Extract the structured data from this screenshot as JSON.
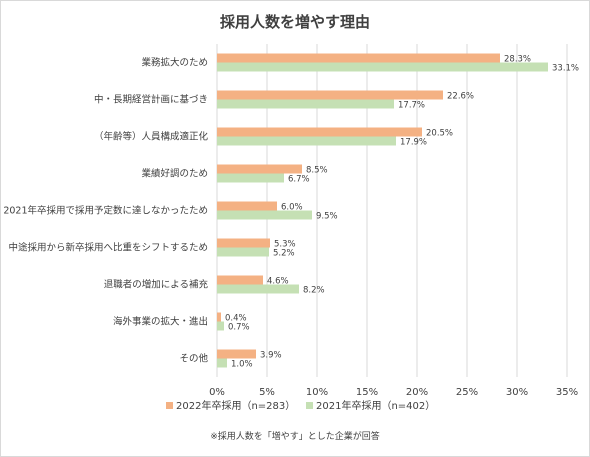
{
  "title": "採用人数を増やす理由",
  "note": "※採用人数を「増やす」とした企業が回答",
  "colors": {
    "series_2022": "#f4b183",
    "series_2021": "#c5e0b4",
    "grid": "#d9d9d9",
    "text": "#404040"
  },
  "chart_data": {
    "type": "bar",
    "orientation": "horizontal",
    "title": "採用人数を増やす理由",
    "categories": [
      "業務拡大のため",
      "中・長期経営計画に基づき",
      "（年齢等）人員構成適正化",
      "業績好調のため",
      "2021年卒採用で採用予定数に達しなかったため",
      "中途採用から新卒採用へ比重をシフトするため",
      "退職者の増加による補充",
      "海外事業の拡大・進出",
      "その他"
    ],
    "series": [
      {
        "name": "2022年卒採用（n=283）",
        "values": [
          28.3,
          22.6,
          20.5,
          8.5,
          6.0,
          5.3,
          4.6,
          0.4,
          3.9
        ]
      },
      {
        "name": "2021年卒採用（n=402）",
        "values": [
          33.1,
          17.7,
          17.9,
          6.7,
          9.5,
          5.2,
          8.2,
          0.7,
          1.0
        ]
      }
    ],
    "xlim": [
      0,
      35
    ],
    "xticks": [
      0,
      5,
      10,
      15,
      20,
      25,
      30,
      35
    ],
    "value_suffix": "%",
    "grid": true,
    "legend_position": "bottom"
  }
}
